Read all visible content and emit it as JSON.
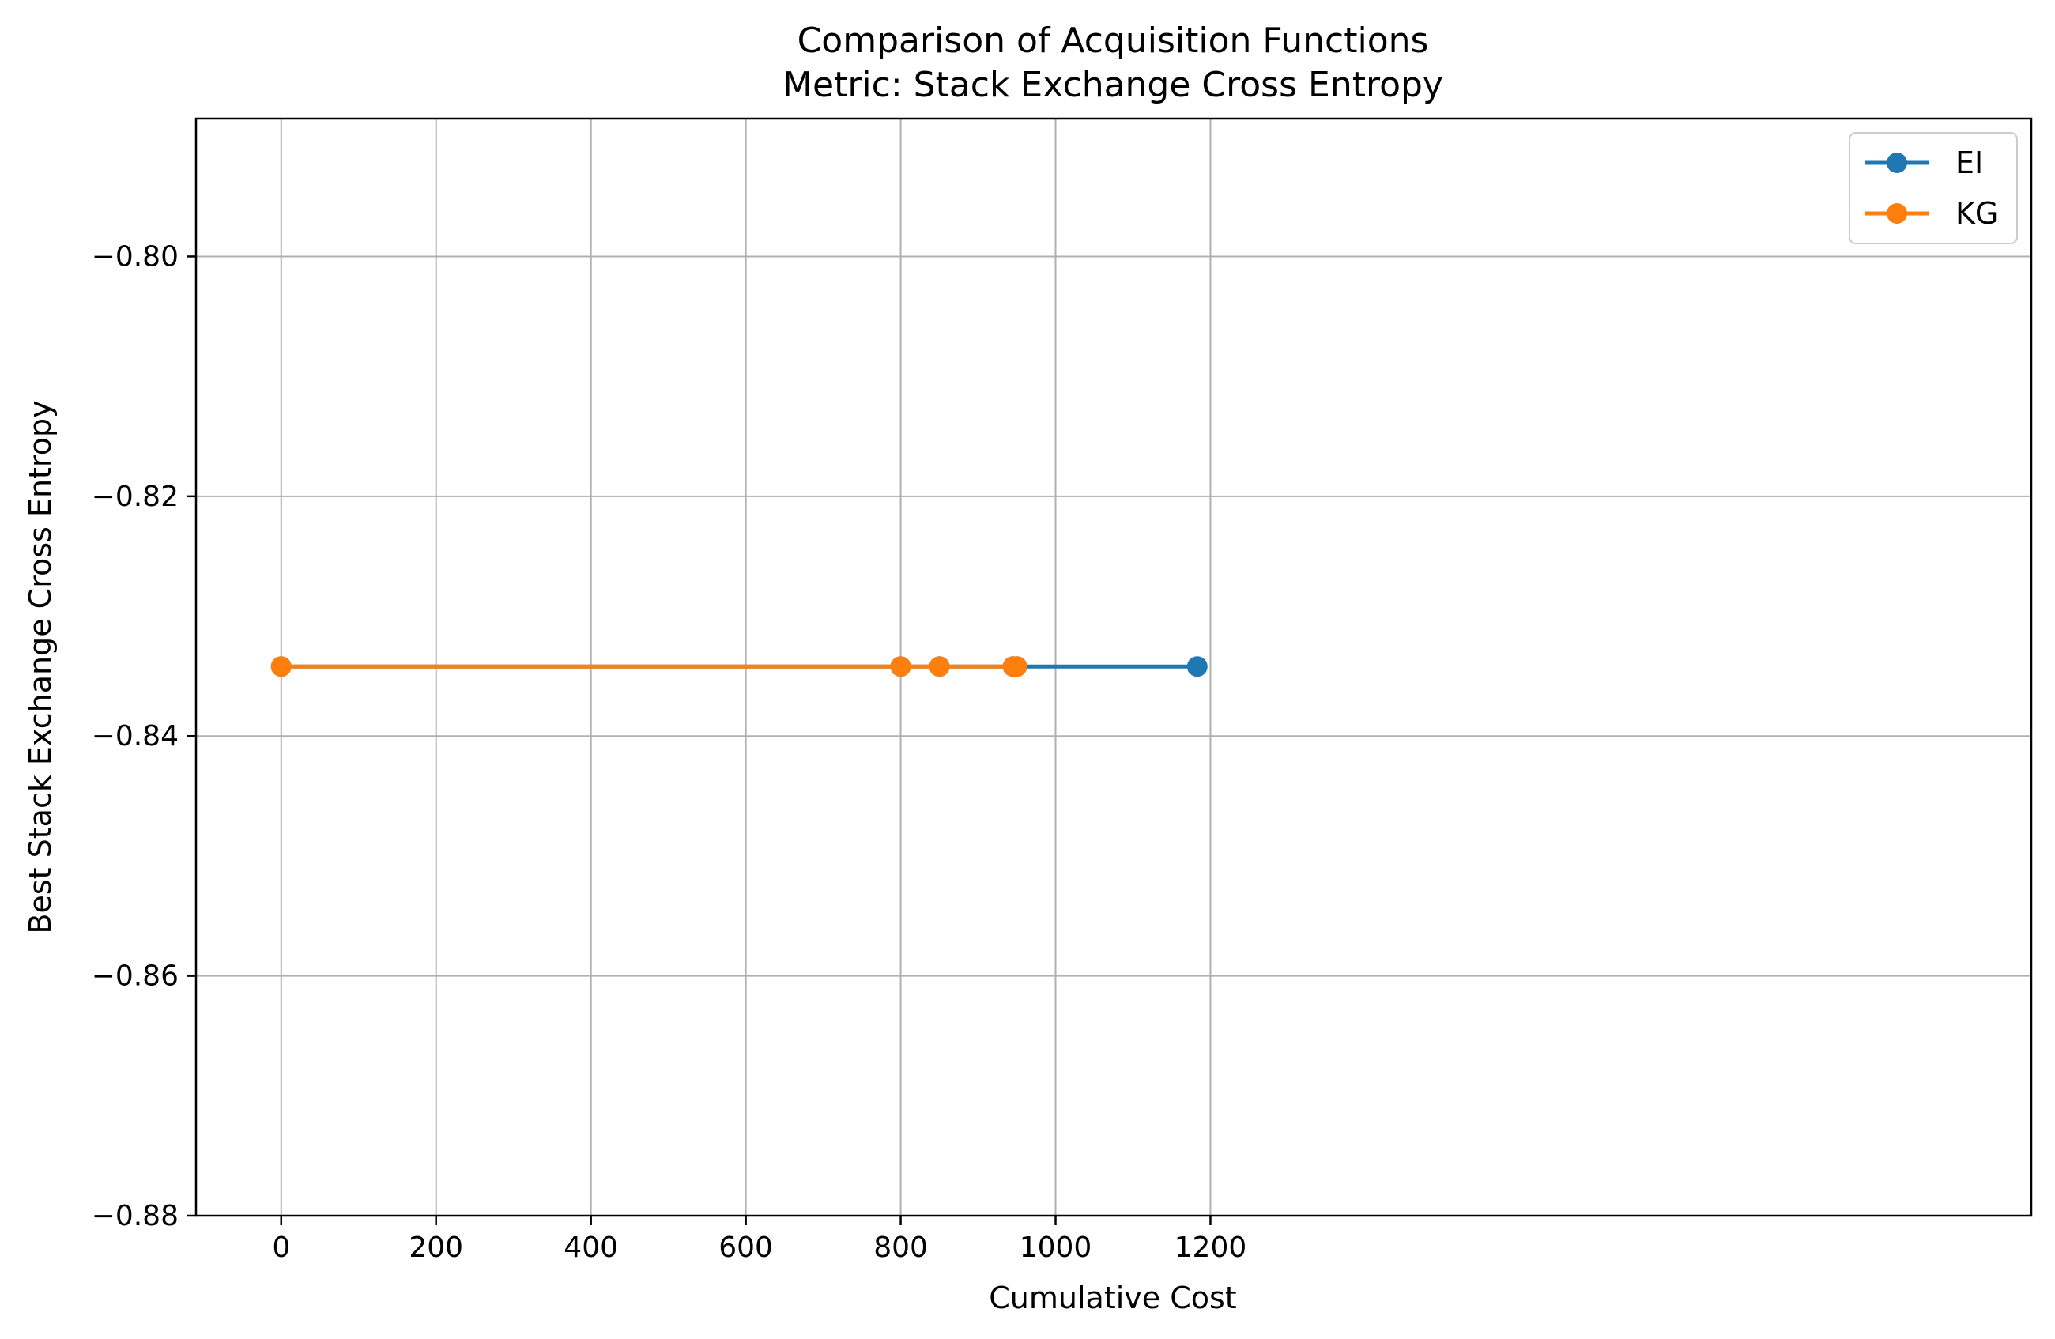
{
  "chart_data": {
    "type": "line",
    "title": "Comparison of Acquisition Functions",
    "subtitle": "Metric: Stack Exchange Cross Entropy",
    "xlabel": "Cumulative Cost",
    "ylabel": "Best Stack Exchange Cross Entropy",
    "xlim": [
      -110,
      2260
    ],
    "ylim": [
      -0.88,
      -0.7885
    ],
    "xticks": [
      0,
      200,
      400,
      600,
      800,
      1000,
      1200
    ],
    "xtick_labels": [
      "0",
      "200",
      "400",
      "600",
      "800",
      "1000",
      "1200"
    ],
    "yticks": [
      -0.88,
      -0.86,
      -0.84,
      -0.82,
      -0.8
    ],
    "ytick_labels": [
      "−0.88",
      "−0.86",
      "−0.84",
      "−0.82",
      "−0.80"
    ],
    "grid": true,
    "legend_position": "top-right",
    "series": [
      {
        "name": "EI",
        "color": "#1f77b4",
        "x": [
          0,
          800,
          850,
          945,
          950,
          1183
        ],
        "y": [
          -0.8342,
          -0.8342,
          -0.8342,
          -0.8342,
          -0.8342,
          -0.8342
        ]
      },
      {
        "name": "KG",
        "color": "#ff7f0e",
        "x": [
          0,
          800,
          850,
          945,
          950
        ],
        "y": [
          -0.8342,
          -0.8342,
          -0.8342,
          -0.8342,
          -0.8342
        ]
      }
    ]
  }
}
